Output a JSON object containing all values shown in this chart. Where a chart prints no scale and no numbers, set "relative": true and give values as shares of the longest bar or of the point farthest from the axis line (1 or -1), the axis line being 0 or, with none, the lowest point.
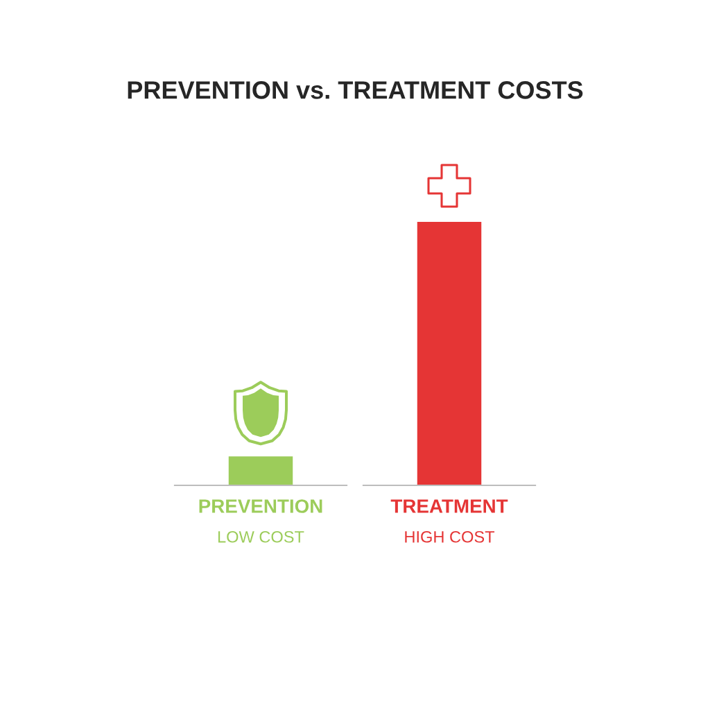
{
  "chart_data": {
    "type": "bar",
    "title": "PREVENTION vs. TREATMENT COSTS",
    "categories": [
      "PREVENTION",
      "TREATMENT"
    ],
    "values": [
      0.11,
      1
    ],
    "colors": [
      "#9ccc5a",
      "#e53535"
    ],
    "relative": true,
    "annotations": [
      "LOW COST",
      "HIGH COST"
    ]
  }
}
